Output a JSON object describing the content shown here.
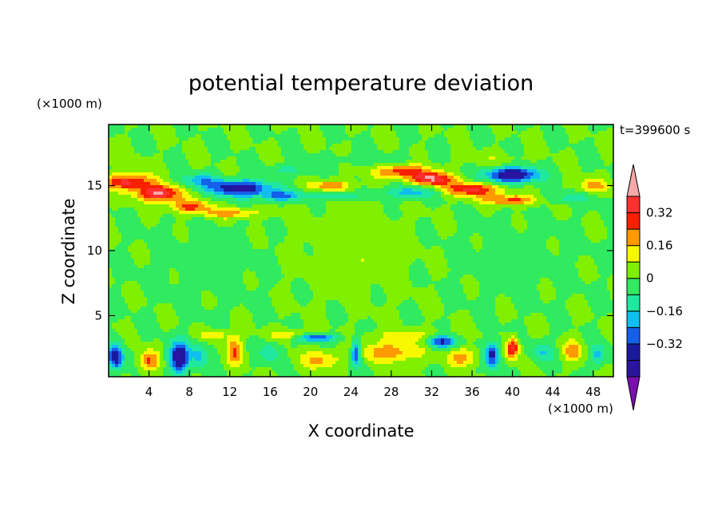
{
  "chart_data": {
    "type": "heatmap",
    "title": "potential temperature deviation",
    "xlabel": "X coordinate",
    "ylabel": "Z coordinate",
    "x_unit": "(×1000 m)",
    "y_unit": "(×1000 m)",
    "time_label": "t=399600 s",
    "xlim": [
      0,
      50
    ],
    "ylim": [
      0.3,
      19.7
    ],
    "xticks": [
      4,
      8,
      12,
      16,
      20,
      24,
      28,
      32,
      36,
      40,
      44,
      48
    ],
    "yticks": [
      5,
      10,
      15
    ],
    "colorbar": {
      "levels": [
        -0.48,
        -0.4,
        -0.32,
        -0.24,
        -0.16,
        -0.08,
        0,
        0.08,
        0.16,
        0.24,
        0.32,
        0.4
      ],
      "colors": [
        "#7a10ad",
        "#2a14a0",
        "#1a1aa0",
        "#1560ea",
        "#10bff0",
        "#20e8a0",
        "#30ea60",
        "#80f000",
        "#f8f800",
        "#ff9a00",
        "#f82000",
        "#ff3030",
        "#f8a8a8"
      ],
      "tick_labels": [
        "0.32",
        "0.16",
        "0",
        "-0.16",
        "-0.32"
      ],
      "tick_values": [
        0.32,
        0.16,
        0,
        -0.16,
        -0.32
      ]
    },
    "features": [
      {
        "x": 0,
        "z": 17.0,
        "value": 0.05,
        "sx": 3,
        "sz": 0.4
      },
      {
        "x": 2.0,
        "z": 15.3,
        "value": 0.35,
        "sx": 2.5,
        "sz": 0.6
      },
      {
        "x": 5.0,
        "z": 14.4,
        "value": 0.42,
        "sx": 2.2,
        "sz": 0.6
      },
      {
        "x": 8.0,
        "z": 13.4,
        "value": 0.28,
        "sx": 2.0,
        "sz": 0.5
      },
      {
        "x": 12.0,
        "z": 12.9,
        "value": 0.2,
        "sx": 3.0,
        "sz": 0.4
      },
      {
        "x": 9.0,
        "z": 15.4,
        "value": -0.2,
        "sx": 2.0,
        "sz": 0.5
      },
      {
        "x": 13.0,
        "z": 14.8,
        "value": -0.45,
        "sx": 3.0,
        "sz": 0.6
      },
      {
        "x": 17.0,
        "z": 14.2,
        "value": -0.25,
        "sx": 2.0,
        "sz": 0.4
      },
      {
        "x": 22.0,
        "z": 14.2,
        "value": -0.15,
        "sx": 3.0,
        "sz": 0.3
      },
      {
        "x": 22.0,
        "z": 15.0,
        "value": 0.22,
        "sx": 2.0,
        "sz": 0.4
      },
      {
        "x": 18.0,
        "z": 16.2,
        "value": -0.12,
        "sx": 2.0,
        "sz": 0.4
      },
      {
        "x": 29.0,
        "z": 16.1,
        "value": 0.3,
        "sx": 2.5,
        "sz": 0.5
      },
      {
        "x": 32.0,
        "z": 15.5,
        "value": 0.42,
        "sx": 2.0,
        "sz": 0.5
      },
      {
        "x": 36.0,
        "z": 14.7,
        "value": 0.34,
        "sx": 3.0,
        "sz": 0.5
      },
      {
        "x": 40.0,
        "z": 13.9,
        "value": 0.28,
        "sx": 3.0,
        "sz": 0.4
      },
      {
        "x": 30.0,
        "z": 14.5,
        "value": -0.22,
        "sx": 2.5,
        "sz": 0.5
      },
      {
        "x": 40.0,
        "z": 15.8,
        "value": -0.48,
        "sx": 2.5,
        "sz": 0.6
      },
      {
        "x": 45.0,
        "z": 14.0,
        "value": -0.12,
        "sx": 3.0,
        "sz": 0.4
      },
      {
        "x": 48.0,
        "z": 15.0,
        "value": 0.2,
        "sx": 1.5,
        "sz": 0.5
      },
      {
        "x": 38.0,
        "z": 17.0,
        "value": 0.06,
        "sx": 3.0,
        "sz": 0.5
      },
      {
        "x": 26.0,
        "z": 17.0,
        "value": -0.06,
        "sx": 4.0,
        "sz": 0.5
      },
      {
        "x": 24.0,
        "z": 10.0,
        "value": 0.05,
        "sx": 6.0,
        "sz": 3.5
      },
      {
        "x": 10.0,
        "z": 9.0,
        "value": -0.04,
        "sx": 6.0,
        "sz": 3.0
      },
      {
        "x": 40.0,
        "z": 9.5,
        "value": -0.04,
        "sx": 6.0,
        "sz": 3.0
      },
      {
        "x": 0.7,
        "z": 1.8,
        "value": -0.4,
        "sx": 0.8,
        "sz": 1.0
      },
      {
        "x": 4.0,
        "z": 1.5,
        "value": 0.25,
        "sx": 1.0,
        "sz": 0.8
      },
      {
        "x": 7.0,
        "z": 1.8,
        "value": -0.45,
        "sx": 1.0,
        "sz": 1.2
      },
      {
        "x": 9.0,
        "z": 2.0,
        "value": -0.18,
        "sx": 0.8,
        "sz": 1.0
      },
      {
        "x": 12.5,
        "z": 2.3,
        "value": 0.25,
        "sx": 0.8,
        "sz": 1.0
      },
      {
        "x": 10.5,
        "z": 3.5,
        "value": 0.15,
        "sx": 1.5,
        "sz": 0.4
      },
      {
        "x": 16.0,
        "z": 2.2,
        "value": -0.15,
        "sx": 1.0,
        "sz": 0.8
      },
      {
        "x": 20.5,
        "z": 3.3,
        "value": -0.35,
        "sx": 2.0,
        "sz": 0.3
      },
      {
        "x": 21.0,
        "z": 1.6,
        "value": 0.18,
        "sx": 2.0,
        "sz": 0.7
      },
      {
        "x": 24.5,
        "z": 2.1,
        "value": -0.35,
        "sx": 0.5,
        "sz": 1.0
      },
      {
        "x": 28.0,
        "z": 2.2,
        "value": 0.22,
        "sx": 3.0,
        "sz": 0.8
      },
      {
        "x": 33.0,
        "z": 3.0,
        "value": -0.35,
        "sx": 1.5,
        "sz": 0.5
      },
      {
        "x": 35.0,
        "z": 1.8,
        "value": 0.2,
        "sx": 1.5,
        "sz": 0.7
      },
      {
        "x": 38.0,
        "z": 2.0,
        "value": -0.38,
        "sx": 0.7,
        "sz": 1.0
      },
      {
        "x": 40.0,
        "z": 2.5,
        "value": 0.38,
        "sx": 0.6,
        "sz": 0.8
      },
      {
        "x": 43.0,
        "z": 2.2,
        "value": -0.15,
        "sx": 1.0,
        "sz": 0.8
      },
      {
        "x": 46.0,
        "z": 2.3,
        "value": 0.2,
        "sx": 1.0,
        "sz": 0.8
      },
      {
        "x": 48.5,
        "z": 2.0,
        "value": -0.18,
        "sx": 0.8,
        "sz": 0.8
      },
      {
        "x": 18.0,
        "z": 3.5,
        "value": 0.18,
        "sx": 2.0,
        "sz": 0.4
      },
      {
        "x": 30.0,
        "z": 3.5,
        "value": 0.1,
        "sx": 4.0,
        "sz": 0.5
      }
    ]
  }
}
